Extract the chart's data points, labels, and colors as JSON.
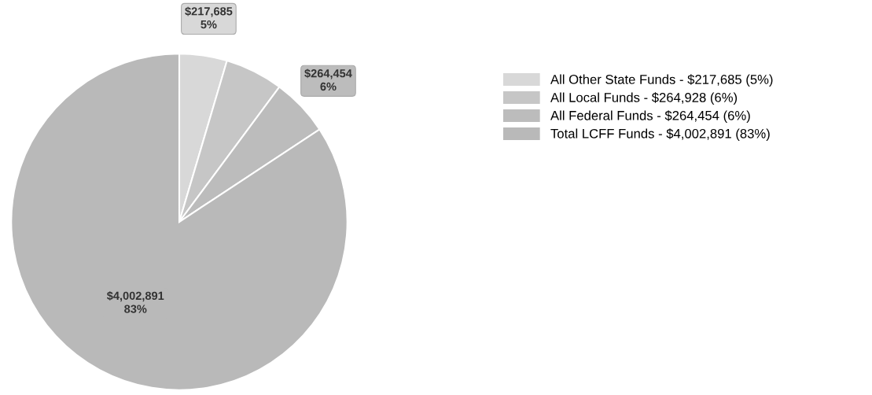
{
  "chart_data": {
    "type": "pie",
    "categories": [
      "All Other State Funds - $217,685 (5%)",
      "All Local Funds - $264,928 (6%)",
      "All Federal Funds - $264,454 (6%)",
      "Total LCFF Funds - $4,002,891 (83%)"
    ],
    "values": [
      217685,
      264928,
      264454,
      4002891
    ],
    "colors": [
      "#d8d8d8",
      "#c6c6c6",
      "#bcbcbc",
      "#b9b9b9"
    ],
    "value_labels": [
      "$217,685\n5%",
      null,
      "$264,454\n6%",
      "$4,002,891\n83%"
    ],
    "legend": "right"
  }
}
